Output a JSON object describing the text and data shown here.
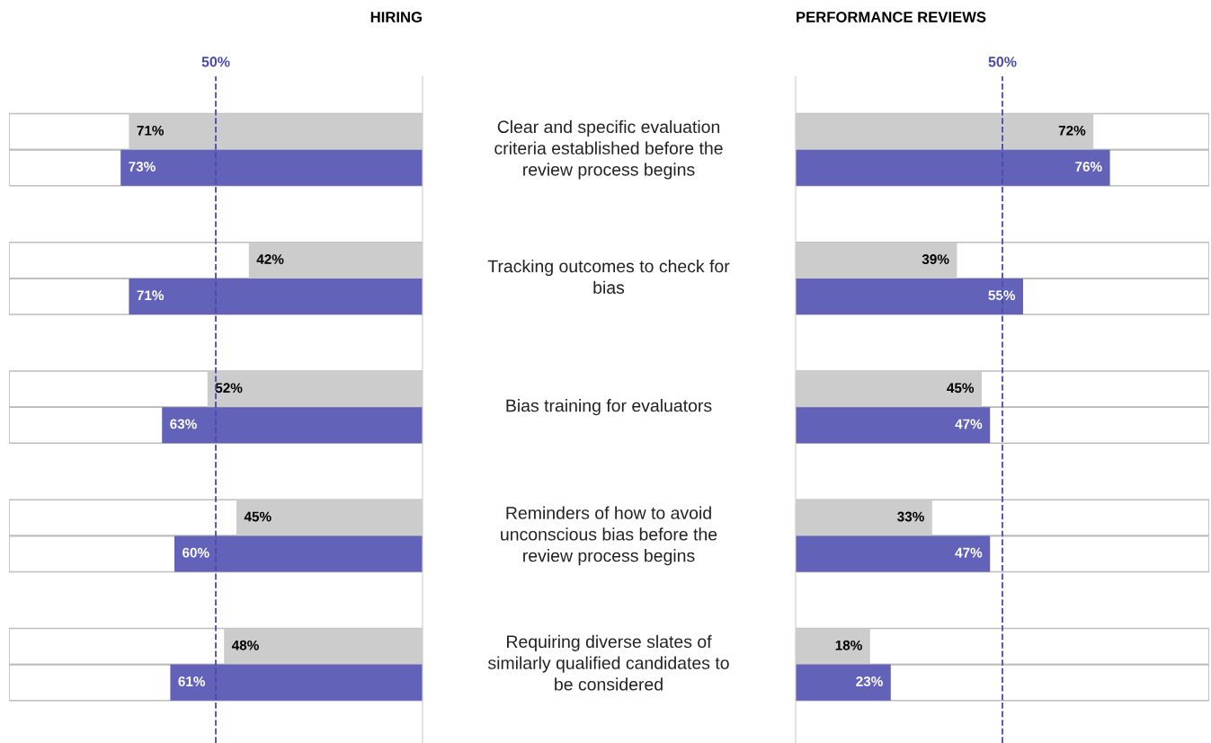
{
  "chart_data": [
    {
      "type": "bar",
      "orientation": "horizontal",
      "title": "HIRING",
      "categories": [
        "Clear and specific evaluation criteria established before the review process begins",
        "Tracking outcomes to check for bias",
        "Bias training for evaluators",
        "Reminders of how to avoid unconscious bias before the review process begins",
        "Requiring diverse slates of similarly qualified candidates to be considered"
      ],
      "series": [
        {
          "color": "#cccccc",
          "values": [
            71,
            42,
            52,
            45,
            48
          ],
          "value_labels": [
            "71%",
            "42%",
            "52%",
            "45%",
            "48%"
          ]
        },
        {
          "color": "#6262b9",
          "values": [
            73,
            71,
            63,
            60,
            61
          ],
          "value_labels": [
            "73%",
            "71%",
            "63%",
            "60%",
            "61%"
          ]
        }
      ],
      "xlim": [
        100,
        0
      ],
      "ref_lines": [
        {
          "axis": "x",
          "value": 50,
          "label": "50%",
          "color": "#4b4bab",
          "line_style": "dashed"
        }
      ]
    },
    {
      "type": "bar",
      "orientation": "horizontal",
      "title": "PERFORMANCE REVIEWS",
      "categories": [
        null,
        null,
        null,
        null,
        null
      ],
      "series": [
        {
          "color": "#cccccc",
          "values": [
            72,
            39,
            45,
            33,
            18
          ],
          "value_labels": [
            "72%",
            "39%",
            "45%",
            "33%",
            "18%"
          ]
        },
        {
          "color": "#6262b9",
          "values": [
            76,
            55,
            47,
            47,
            23
          ],
          "value_labels": [
            "76%",
            "55%",
            "47%",
            "47%",
            "23%"
          ]
        }
      ],
      "xlim": [
        0,
        100
      ],
      "ref_lines": [
        {
          "axis": "x",
          "value": 50,
          "label": "50%",
          "color": "#4b4bab",
          "line_style": "dashed"
        }
      ]
    }
  ]
}
